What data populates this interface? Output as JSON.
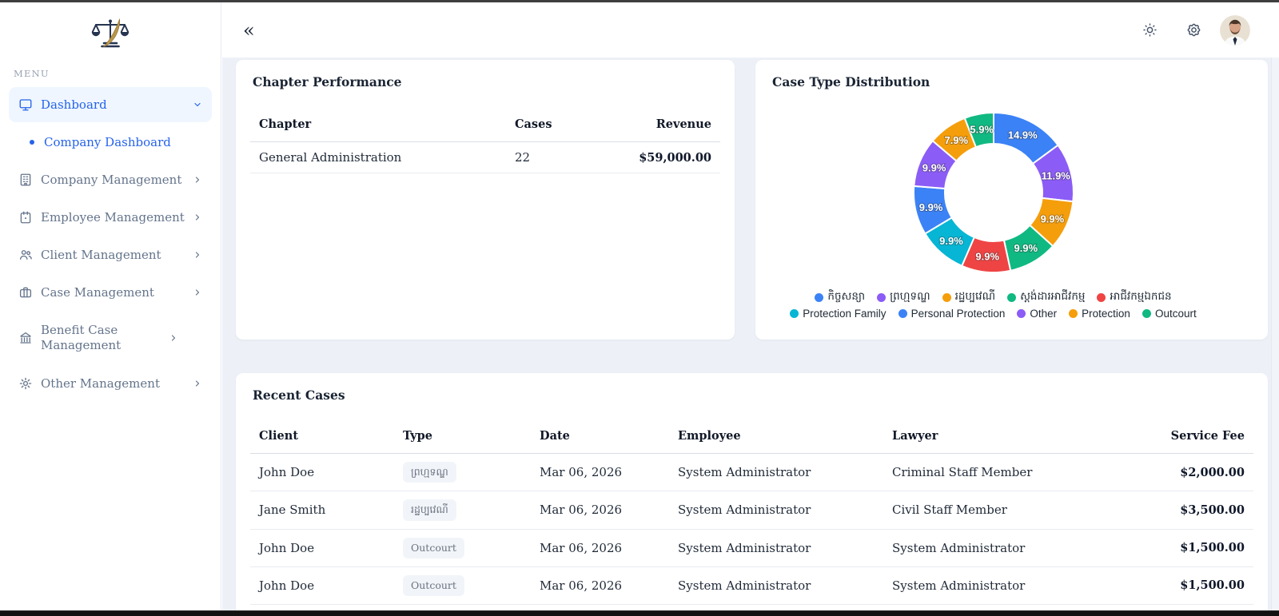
{
  "colors": {
    "accent": "#2563eb",
    "sidebar_active_bg": "#eff6ff",
    "content_bg": "#edf1f7",
    "badge_bg": "#f1f5f9",
    "badge_text": "#6b7280",
    "muted_text": "#64748b",
    "title_text": "#1a2433",
    "logo_navy": "#263450",
    "logo_gold": "#b9964a"
  },
  "header": {
    "collapse_icon": "«",
    "icons": [
      "theme-toggle",
      "settings",
      "avatar"
    ]
  },
  "sidebar": {
    "menu_label": "MENU",
    "items": [
      {
        "label": "Dashboard",
        "icon": "monitor",
        "active": true,
        "expanded": true
      },
      {
        "label": "Company Dashboard",
        "type": "sub-item",
        "active": true
      },
      {
        "label": "Company Management",
        "icon": "building"
      },
      {
        "label": "Employee Management",
        "icon": "id-badge"
      },
      {
        "label": "Client Management",
        "icon": "users"
      },
      {
        "label": "Case Management",
        "icon": "briefcase"
      },
      {
        "label": "Benefit Case Management",
        "icon": "bank"
      },
      {
        "label": "Other Management",
        "icon": "gear"
      }
    ]
  },
  "chapter_performance": {
    "title": "Chapter Performance",
    "columns": {
      "chapter": "Chapter",
      "cases": "Cases",
      "revenue": "Revenue"
    },
    "rows": [
      {
        "chapter": "General Administration",
        "cases": "22",
        "revenue": "$59,000.00"
      }
    ]
  },
  "chart_data": {
    "type": "pie",
    "subtype": "donut",
    "title": "Case Type Distribution",
    "unit": "%",
    "total": 100,
    "start_angle_deg": 0,
    "direction": "clockwise",
    "legend_position": "bottom",
    "series": [
      {
        "name": "កិច្ចសន្យា",
        "value": 14.9,
        "color": "#3b82f6",
        "legend_row": 1
      },
      {
        "name": "ព្រហ្មទណ្ឌ",
        "value": 11.9,
        "color": "#8b5cf6",
        "legend_row": 1
      },
      {
        "name": "រដ្ឋប្បវេណី",
        "value": 9.9,
        "color": "#f59e0b",
        "legend_row": 1
      },
      {
        "name": "ស្តង់ដារអាជីវកម្ម",
        "value": 9.9,
        "color": "#10b981",
        "legend_row": 1
      },
      {
        "name": "អាជីវកម្មឯកជន",
        "value": 9.9,
        "color": "#ef4444",
        "legend_row": 1
      },
      {
        "name": "Protection Family",
        "value": 9.9,
        "color": "#06b6d4",
        "legend_row": 2
      },
      {
        "name": "Personal Protection",
        "value": 9.9,
        "color": "#3b82f6",
        "legend_row": 2
      },
      {
        "name": "Other",
        "value": 9.9,
        "color": "#8b5cf6",
        "legend_row": 2
      },
      {
        "name": "Protection",
        "value": 7.9,
        "color": "#f59e0b",
        "legend_row": 2
      },
      {
        "name": "Outcourt",
        "value": 5.9,
        "color": "#10b981",
        "legend_row": 2
      }
    ]
  },
  "recent_cases": {
    "title": "Recent Cases",
    "columns": {
      "client": "Client",
      "type": "Type",
      "date": "Date",
      "employee": "Employee",
      "lawyer": "Lawyer",
      "fee": "Service Fee"
    },
    "rows": [
      {
        "client": "John Doe",
        "type": "ព្រហ្មទណ្ឌ",
        "date": "Mar 06, 2026",
        "employee": "System Administrator",
        "lawyer": "Criminal Staff Member",
        "fee": "$2,000.00"
      },
      {
        "client": "Jane Smith",
        "type": "រដ្ឋប្បវេណី",
        "date": "Mar 06, 2026",
        "employee": "System Administrator",
        "lawyer": "Civil Staff Member",
        "fee": "$3,500.00"
      },
      {
        "client": "John Doe",
        "type": "Outcourt",
        "date": "Mar 06, 2026",
        "employee": "System Administrator",
        "lawyer": "System Administrator",
        "fee": "$1,500.00"
      },
      {
        "client": "John Doe",
        "type": "Outcourt",
        "date": "Mar 06, 2026",
        "employee": "System Administrator",
        "lawyer": "System Administrator",
        "fee": "$1,500.00"
      }
    ],
    "partial_row": {
      "type": ""
    }
  }
}
